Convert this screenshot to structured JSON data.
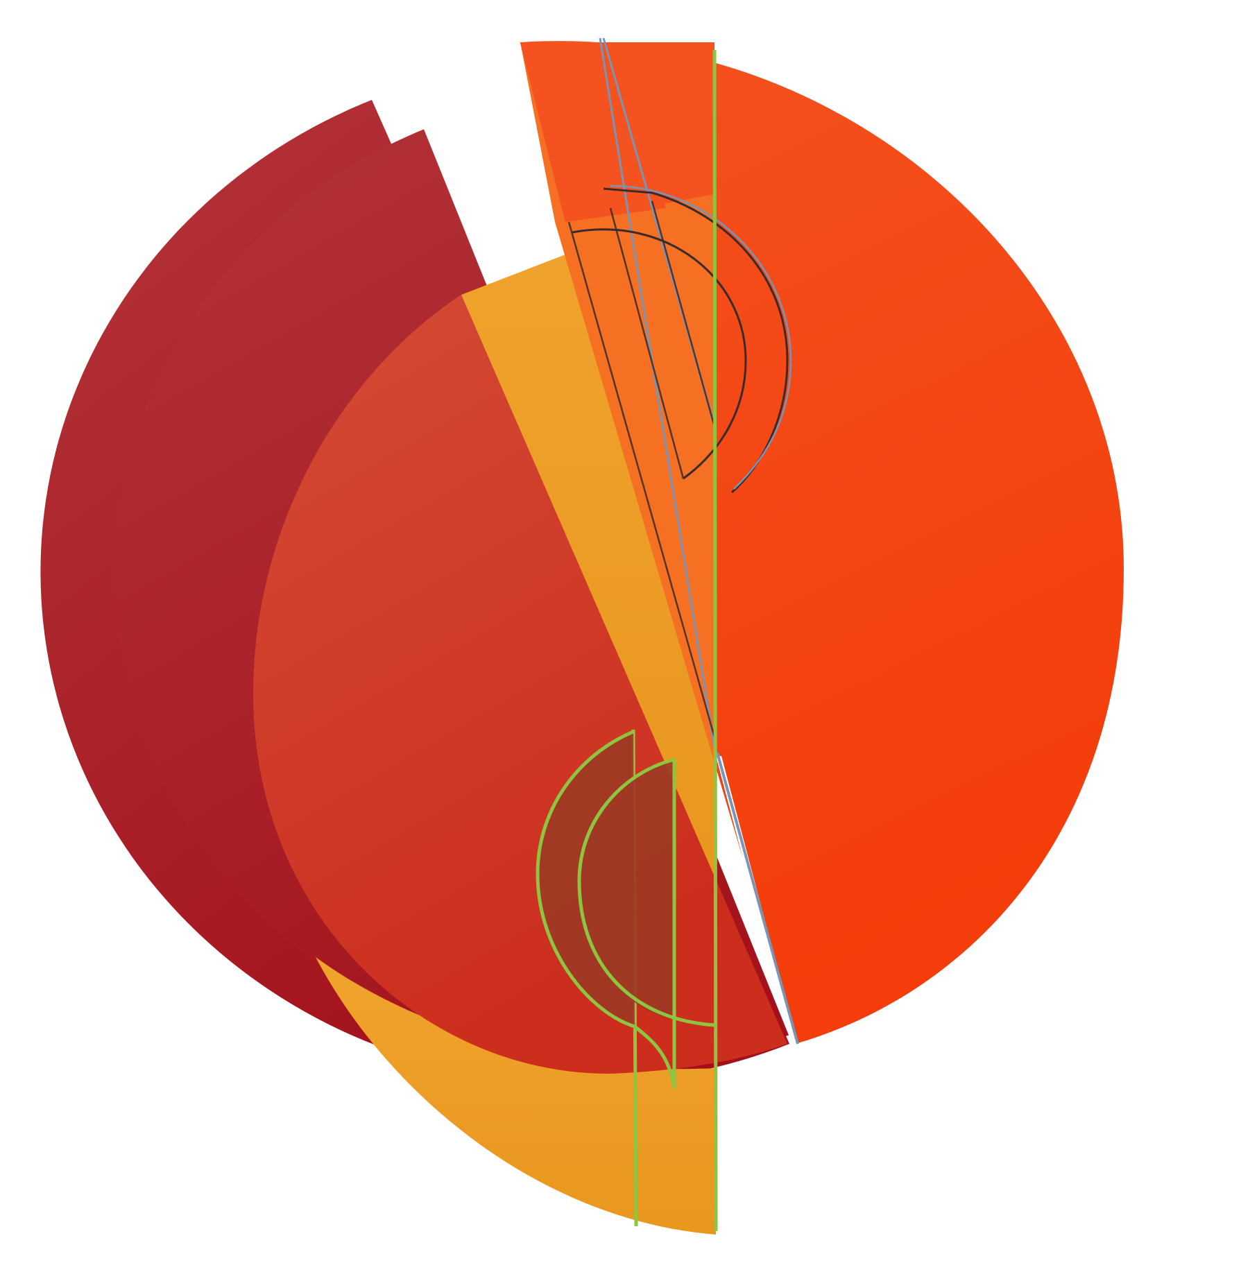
{
  "artwork": {
    "background": "#ffffff",
    "colors": {
      "crimson_light": "#b3353a",
      "crimson_dark": "#a3101a",
      "vermilion_light": "#d44b36",
      "vermilion_dark": "#cc2d1d",
      "amber_light": "#f0a42d",
      "amber_dark": "#e8961e",
      "orange_light": "#f4521f",
      "orange_dark": "#f43d0a",
      "overlap_orange": "#f57022",
      "inlay_rust": "#9e3a24",
      "line_green": "#8fc440",
      "line_steel": "#7b93b4",
      "line_dark": "#3a2a2a"
    },
    "shapes": [
      "crimson-segment",
      "amber-crescent",
      "vermilion-disc",
      "orange-disc",
      "orange-strip",
      "amber-wedge",
      "rust-half-disc-inlay"
    ]
  }
}
